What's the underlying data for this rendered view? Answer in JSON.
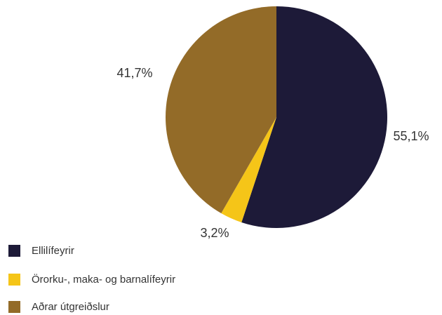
{
  "chart_data": {
    "type": "pie",
    "title": "",
    "slices": [
      {
        "label": "Ellilífeyrir",
        "value": 55.1,
        "value_label": "55,1%",
        "color": "#1d1a38"
      },
      {
        "label": "Örorku-, maka- og barnalífeyrir",
        "value": 3.2,
        "value_label": "3,2%",
        "color": "#f5c518"
      },
      {
        "label": "Aðrar útgreiðslur",
        "value": 41.7,
        "value_label": "41,7%",
        "color": "#936b28"
      }
    ],
    "start": "12 o'clock",
    "direction": "clockwise",
    "legend_position": "bottom-left"
  }
}
